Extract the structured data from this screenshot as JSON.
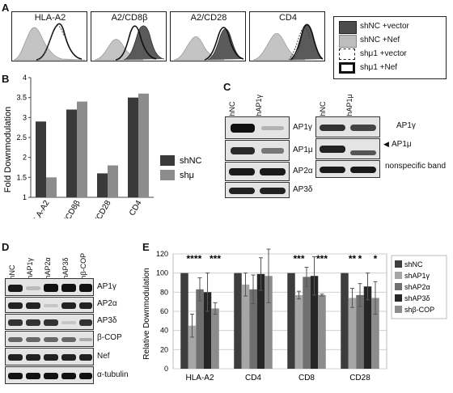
{
  "panels": {
    "A": "A",
    "B": "B",
    "C": "C",
    "D": "D",
    "E": "E"
  },
  "histograms": {
    "titles": [
      "HLA-A2",
      "A2/CD8β",
      "A2/CD28",
      "CD4"
    ],
    "legend": [
      "shNC +vector",
      "shNC +Nef",
      "shμ1 +vector",
      "shμ1 +Nef"
    ]
  },
  "chartB": {
    "type": "bar",
    "ylabel": "Fold Downmodulation",
    "categories": [
      "HLA-A2",
      "A2/CD8β",
      "A2/CD28",
      "CD4"
    ],
    "ylim": [
      1,
      4
    ],
    "yticks": [
      "1",
      "1.5",
      "2",
      "2.5",
      "3",
      "3.5",
      "4"
    ],
    "series": [
      {
        "name": "shNC",
        "values": [
          2.9,
          3.2,
          1.6,
          3.5
        ],
        "color": "#3a3a3a"
      },
      {
        "name": "shμ",
        "values": [
          1.5,
          3.4,
          1.8,
          3.6
        ],
        "color": "#8c8c8c"
      }
    ]
  },
  "blotC": {
    "left_lanes": [
      "shNC",
      "shAP1γ"
    ],
    "left_labels": [
      "AP1γ",
      "AP1μ",
      "AP2α",
      "AP3δ"
    ],
    "right_lanes": [
      "shNC",
      "shAP1μ"
    ],
    "right_labels": [
      "AP1γ",
      "AP1μ",
      "nonspecific band"
    ]
  },
  "blotD": {
    "lanes": [
      "shNC",
      "shAP1γ",
      "shAP2α",
      "shAP3δ",
      "shβ-COP"
    ],
    "labels": [
      "AP1γ",
      "AP2α",
      "AP3δ",
      "β-COP",
      "Nef",
      "α-tubulin"
    ]
  },
  "chart_data": {
    "type": "bar",
    "ylabel": "Relative Downmodulation",
    "categories": [
      "HLA-A2",
      "CD4",
      "CD8",
      "CD28"
    ],
    "ylim": [
      0,
      120
    ],
    "yticks": [
      "0",
      "20",
      "40",
      "60",
      "80",
      "100",
      "120"
    ],
    "series": [
      {
        "name": "shNC",
        "values": [
          100,
          100,
          100,
          100
        ],
        "err": [
          0,
          0,
          0,
          0
        ],
        "color": "#3d3d3d"
      },
      {
        "name": "shAP1γ",
        "values": [
          45,
          88,
          77,
          74
        ],
        "err": [
          12,
          12,
          4,
          10
        ],
        "color": "#a6a6a6"
      },
      {
        "name": "shAP2α",
        "values": [
          83,
          83,
          96,
          77
        ],
        "err": [
          12,
          15,
          10,
          12
        ],
        "color": "#6f6f6f"
      },
      {
        "name": "shAP3δ",
        "values": [
          80,
          99,
          97,
          86
        ],
        "err": [
          20,
          17,
          20,
          14
        ],
        "color": "#262626"
      },
      {
        "name": "shβ-COP",
        "values": [
          63,
          97,
          77,
          74
        ],
        "err": [
          6,
          28,
          1,
          17
        ],
        "color": "#8c8c8c"
      }
    ],
    "significance": [
      {
        "category": 0,
        "series": 1,
        "mark": "***"
      },
      {
        "category": 0,
        "series": 2,
        "mark": "*"
      },
      {
        "category": 0,
        "series": 4,
        "mark": "***"
      },
      {
        "category": 2,
        "series": 1,
        "mark": "***"
      },
      {
        "category": 2,
        "series": 4,
        "mark": "***"
      },
      {
        "category": 3,
        "series": 1,
        "mark": "**"
      },
      {
        "category": 3,
        "series": 2,
        "mark": "*"
      },
      {
        "category": 3,
        "series": 4,
        "mark": "*"
      }
    ]
  }
}
